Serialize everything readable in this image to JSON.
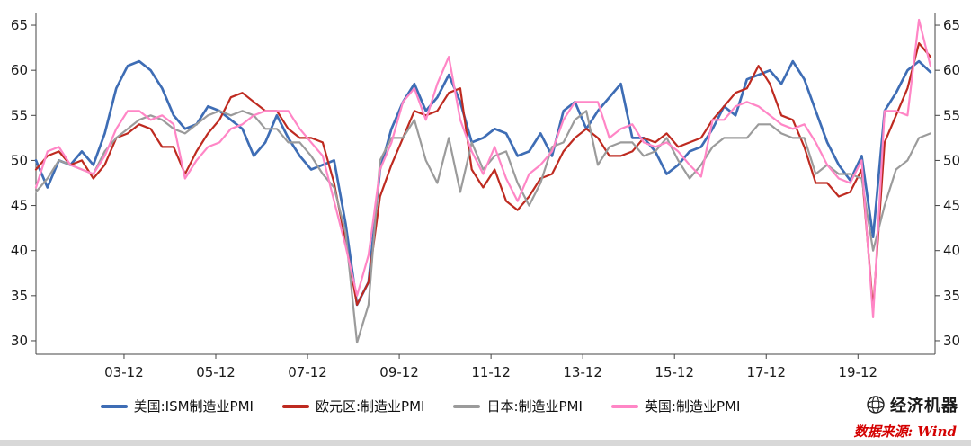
{
  "chart_data": {
    "type": "line",
    "title": "",
    "xlabel": "",
    "ylabel": "",
    "x_axis": {
      "range": [
        2002.0,
        2021.6
      ],
      "ticks": [
        "03-12",
        "05-12",
        "07-12",
        "09-12",
        "11-12",
        "13-12",
        "15-12",
        "17-12",
        "19-12"
      ],
      "tick_positions": [
        2003.92,
        2005.92,
        2007.92,
        2009.92,
        2011.92,
        2013.92,
        2015.92,
        2017.92,
        2019.92
      ]
    },
    "y_axis": {
      "range": [
        28.5,
        66.4
      ],
      "ticks": [
        30,
        35,
        40,
        45,
        50,
        55,
        60,
        65
      ],
      "labels_left": true,
      "labels_right": true
    },
    "grid": false,
    "legend_position": "bottom",
    "x": [
      2002,
      2002.25,
      2002.5,
      2002.75,
      2003,
      2003.25,
      2003.5,
      2003.75,
      2004,
      2004.25,
      2004.5,
      2004.75,
      2005,
      2005.25,
      2005.5,
      2005.75,
      2006,
      2006.25,
      2006.5,
      2006.75,
      2007,
      2007.25,
      2007.5,
      2007.75,
      2008,
      2008.25,
      2008.5,
      2008.75,
      2009,
      2009.25,
      2009.5,
      2009.75,
      2010,
      2010.25,
      2010.5,
      2010.75,
      2011,
      2011.25,
      2011.5,
      2011.75,
      2012,
      2012.25,
      2012.5,
      2012.75,
      2013,
      2013.25,
      2013.5,
      2013.75,
      2014,
      2014.25,
      2014.5,
      2014.75,
      2015,
      2015.25,
      2015.5,
      2015.75,
      2016,
      2016.25,
      2016.5,
      2016.75,
      2017,
      2017.25,
      2017.5,
      2017.75,
      2018,
      2018.25,
      2018.5,
      2018.75,
      2019,
      2019.25,
      2019.5,
      2019.75,
      2020,
      2020.25,
      2020.5,
      2020.75,
      2021,
      2021.25,
      2021.5
    ],
    "series": [
      {
        "key": "us-ism",
        "name": "美国:ISM制造业PMI",
        "color": "#3E6DB5",
        "values": [
          50,
          47,
          50,
          49.5,
          51,
          49.5,
          53,
          58,
          60.5,
          61,
          60,
          58,
          55,
          53.5,
          54,
          56,
          55.5,
          54.5,
          53.5,
          50.5,
          52,
          55,
          52.5,
          50.5,
          49,
          49.5,
          50,
          43,
          34,
          36.5,
          49,
          53.5,
          56.5,
          58.5,
          55.5,
          57,
          59.5,
          56.5,
          52,
          52.5,
          53.5,
          53,
          50.5,
          51,
          53,
          50.5,
          55.5,
          56.5,
          53.5,
          55.5,
          57,
          58.5,
          52.5,
          52.5,
          51,
          48.5,
          49.5,
          51,
          51.5,
          53.5,
          56,
          55,
          59,
          59.5,
          60,
          58.5,
          61,
          59,
          55.5,
          52,
          49.5,
          47.8,
          50.5,
          41.5,
          55.5,
          57.5,
          60,
          61,
          59.8
        ]
      },
      {
        "key": "eurozone",
        "name": "欧元区:制造业PMI",
        "color": "#BE2A20",
        "values": [
          49,
          50.5,
          51,
          49.5,
          50,
          48,
          49.5,
          52.5,
          53,
          54,
          53.5,
          51.5,
          51.5,
          48.5,
          51,
          53,
          54.5,
          57,
          57.5,
          56.5,
          55.5,
          55.5,
          53.5,
          52.5,
          52.5,
          52,
          47.5,
          41,
          34,
          36.5,
          46,
          49.5,
          52.5,
          55.5,
          55,
          55.5,
          57.5,
          58,
          49,
          47,
          49,
          45.5,
          44.5,
          46,
          48,
          48.5,
          51,
          52.5,
          53.5,
          52.5,
          50.5,
          50.5,
          51,
          52.5,
          52,
          53,
          51.5,
          52,
          52.5,
          54.5,
          56,
          57.5,
          58,
          60.5,
          58.5,
          55,
          54.5,
          51.5,
          47.5,
          47.5,
          46,
          46.5,
          49,
          33.5,
          52,
          55,
          58,
          63,
          61.5
        ]
      },
      {
        "key": "japan",
        "name": "日本:制造业PMI",
        "color": "#9B9B9B",
        "values": [
          46.5,
          48,
          50,
          49.5,
          49,
          48.5,
          51,
          52.5,
          53.5,
          54.5,
          55,
          54.5,
          53.5,
          53,
          54,
          55,
          55.5,
          55,
          55.5,
          55,
          53.5,
          53.5,
          52,
          52,
          50.5,
          48.5,
          47,
          42,
          29.8,
          34,
          50,
          52.5,
          52.5,
          54.5,
          50,
          47.5,
          52.5,
          46.5,
          52,
          49,
          50.5,
          51,
          47.5,
          45,
          47.5,
          51.5,
          52,
          54.5,
          55.5,
          49.5,
          51.5,
          52,
          52,
          50.5,
          51,
          52.5,
          50,
          48,
          49.5,
          51.5,
          52.5,
          52.5,
          52.5,
          54,
          54,
          53,
          52.5,
          52.5,
          48.5,
          49.5,
          48.5,
          48.5,
          48,
          40,
          45,
          49,
          50,
          52.5,
          53
        ]
      },
      {
        "key": "uk",
        "name": "英国:制造业PMI",
        "color": "#FF86C6",
        "values": [
          47,
          51,
          51.5,
          49.5,
          49,
          48.5,
          50.5,
          53.5,
          55.5,
          55.5,
          54.5,
          55,
          54,
          48,
          50,
          51.5,
          52,
          53.5,
          54,
          55,
          55.5,
          55.5,
          55.5,
          53.5,
          52,
          50.5,
          45.5,
          40.5,
          35,
          39.5,
          49,
          52,
          56.5,
          58,
          54.5,
          58.5,
          61.5,
          54.5,
          51,
          48.5,
          51.5,
          48,
          45.5,
          48.5,
          49.5,
          51,
          54.5,
          56.5,
          56.5,
          56.5,
          52.5,
          53.5,
          54,
          52,
          51.5,
          52,
          51,
          49.5,
          48.2,
          54.5,
          54.5,
          56,
          56.5,
          56,
          55,
          54,
          53.5,
          54,
          52,
          49.5,
          48,
          47.5,
          50,
          32.6,
          55.5,
          55.5,
          55,
          65.6,
          60.5
        ]
      }
    ]
  },
  "footer": {
    "logo_text": "经济机器",
    "source_label": "数据来源: Wind"
  }
}
